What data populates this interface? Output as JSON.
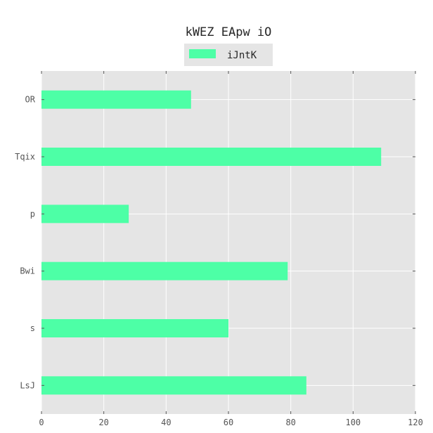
{
  "chart_data": {
    "type": "bar",
    "orientation": "horizontal",
    "title": "kWEZ EApw  iO",
    "xlabel": "",
    "ylabel": "",
    "categories": [
      "OR",
      "Tqix",
      "p",
      "Bwi",
      "s",
      "LsJ"
    ],
    "series": [
      {
        "name": "iJntK",
        "values": [
          48,
          109,
          28,
          79,
          60,
          85
        ],
        "color": "#4dffa6"
      }
    ],
    "xlim": [
      0,
      120
    ],
    "xticks": [
      0,
      20,
      40,
      60,
      80,
      100,
      120
    ],
    "xtick_labels": [
      "0",
      "20",
      "40",
      "60",
      "80",
      "100",
      "120"
    ],
    "grid": true,
    "legend_position": "top-center",
    "plot_background": "#e5e5e5",
    "grid_color": "#ffffff"
  }
}
